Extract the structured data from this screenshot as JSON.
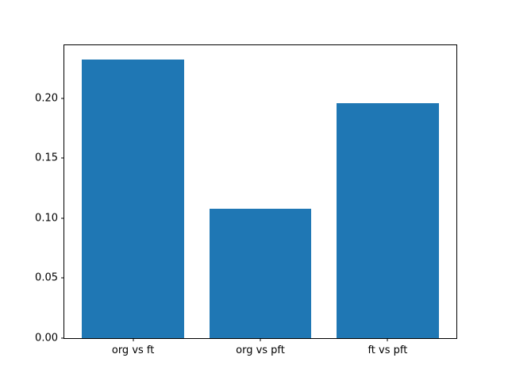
{
  "chart_data": {
    "type": "bar",
    "title": "",
    "xlabel": "",
    "ylabel": "",
    "categories": [
      "org vs ft",
      "org vs pft",
      "ft vs pft"
    ],
    "values": [
      0.232,
      0.108,
      0.196
    ],
    "ylim": [
      0,
      0.244
    ],
    "yticks": [
      0.0,
      0.05,
      0.1,
      0.15,
      0.2
    ],
    "ytick_labels": [
      "0.00",
      "0.05",
      "0.10",
      "0.15",
      "0.20"
    ],
    "bar_color": "#1f77b4",
    "background_color": "#ffffff",
    "grid": false,
    "legend": false,
    "bar_width_units": 0.8
  }
}
